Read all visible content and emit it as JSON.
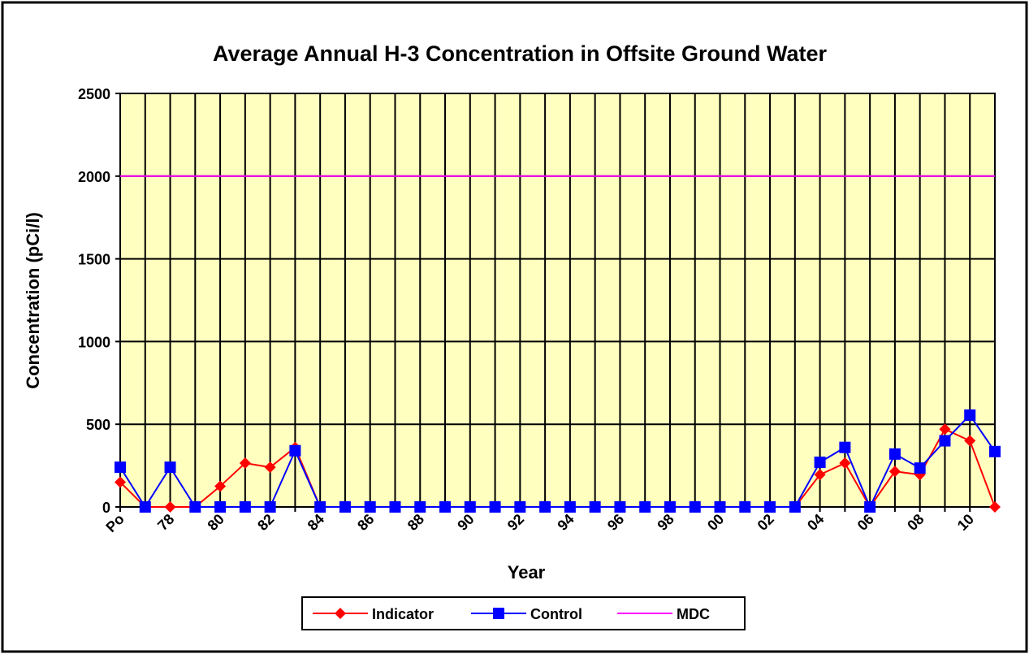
{
  "chart_data": {
    "type": "line",
    "title": "Average Annual H-3 Concentration in Offsite Ground Water",
    "xlabel": "Year",
    "ylabel": "Concentration (pCi/l)",
    "categories": [
      "Po",
      null,
      "78",
      null,
      "80",
      null,
      "82",
      null,
      "84",
      null,
      "86",
      null,
      "88",
      null,
      "90",
      null,
      "92",
      null,
      "94",
      null,
      "96",
      null,
      "98",
      null,
      "00",
      null,
      "02",
      null,
      "04",
      null,
      "06",
      null,
      "08",
      null,
      "10",
      null
    ],
    "series": [
      {
        "name": "Indicator",
        "color": "#ff0000",
        "marker": "diamond",
        "values": [
          150,
          0,
          0,
          0,
          125,
          265,
          240,
          360,
          0,
          0,
          0,
          0,
          0,
          0,
          0,
          0,
          0,
          0,
          0,
          0,
          0,
          0,
          0,
          0,
          0,
          0,
          0,
          0,
          195,
          265,
          0,
          215,
          195,
          470,
          400,
          0
        ]
      },
      {
        "name": "Control",
        "color": "#0000ff",
        "marker": "square",
        "values": [
          240,
          0,
          240,
          0,
          0,
          0,
          0,
          340,
          0,
          0,
          0,
          0,
          0,
          0,
          0,
          0,
          0,
          0,
          0,
          0,
          0,
          0,
          0,
          0,
          0,
          0,
          0,
          0,
          270,
          360,
          0,
          320,
          235,
          400,
          555,
          335
        ]
      },
      {
        "name": "MDC",
        "color": "#ff00ff",
        "marker": "none",
        "values": [
          2000,
          2000,
          2000,
          2000,
          2000,
          2000,
          2000,
          2000,
          2000,
          2000,
          2000,
          2000,
          2000,
          2000,
          2000,
          2000,
          2000,
          2000,
          2000,
          2000,
          2000,
          2000,
          2000,
          2000,
          2000,
          2000,
          2000,
          2000,
          2000,
          2000,
          2000,
          2000,
          2000,
          2000,
          2000,
          2000
        ]
      }
    ],
    "ylim": [
      0,
      2500
    ],
    "yticks": [
      0,
      500,
      1000,
      1500,
      2000,
      2500
    ],
    "grid": true,
    "legend": "bottom",
    "plot_background": "#ffffc0"
  }
}
